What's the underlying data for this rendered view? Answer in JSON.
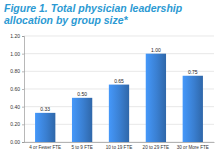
{
  "chart_data": {
    "type": "bar",
    "title": "Figure 1. Total physician leadership allocation by group size*",
    "categories": [
      "4 or Fewer FTE",
      "5 to 9 FTE",
      "10 to 19 FTE",
      "20 to 29 FTE",
      "30 or More FTE"
    ],
    "values": [
      0.33,
      0.5,
      0.65,
      1.0,
      0.75
    ],
    "value_labels": [
      "0.33",
      "0.50",
      "0.65",
      "1.00",
      "0.75"
    ],
    "color": "#3a7fd1",
    "ylim": [
      0,
      1.2
    ],
    "yticks": [
      {
        "value": 0,
        "label": "0.00"
      },
      {
        "value": 0.2,
        "label": "0.20"
      },
      {
        "value": 0.4,
        "label": "0.40"
      },
      {
        "value": 0.6,
        "label": "0.60"
      },
      {
        "value": 0.8,
        "label": "0.80"
      },
      {
        "value": 1.0,
        "label": "1.00"
      },
      {
        "value": 1.2,
        "label": "1.20"
      }
    ],
    "grid": true,
    "data_labels": true
  }
}
